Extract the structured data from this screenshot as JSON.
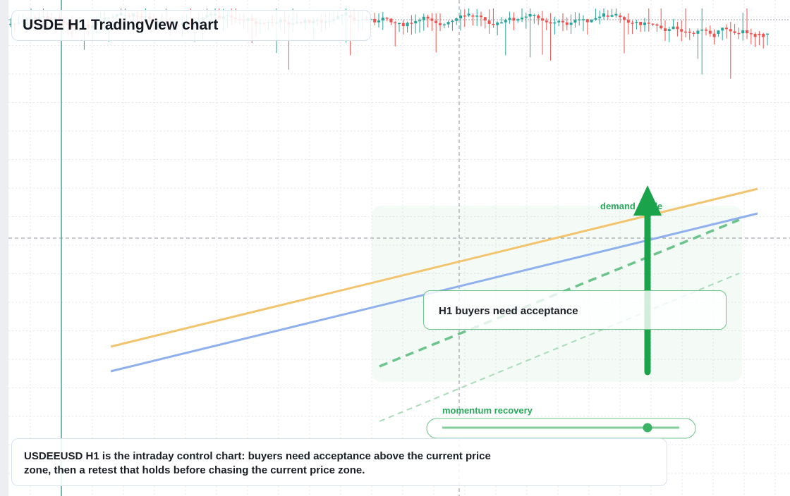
{
  "header": {
    "title": "USDE H1 TradingView chart"
  },
  "annotations": {
    "zone_label": "demand guide",
    "callout": "H1 buyers need acceptance",
    "slider_label": "momentum recovery"
  },
  "note": {
    "text": "USDEEUSD H1 is the intraday control chart: buyers need acceptance above the current price zone, then a retest that holds before chasing the current price zone."
  }
}
